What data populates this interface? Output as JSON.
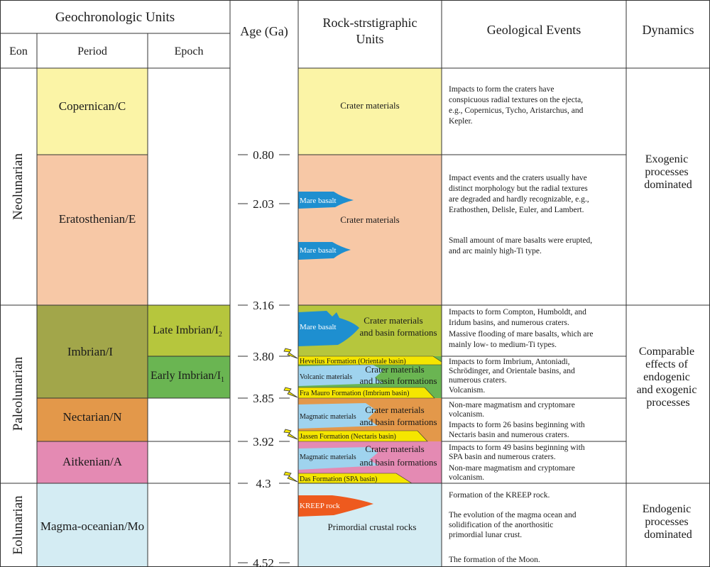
{
  "header": {
    "geochron": "Geochronologic Units",
    "eon": "Eon",
    "period": "Period",
    "epoch": "Epoch",
    "age": "Age (Ga)",
    "rock_line1": "Rock-strstigraphic",
    "rock_line2": "Units",
    "events": "Geological Events",
    "dynamics": "Dynamics"
  },
  "eons": [
    {
      "name": "Neolunarian"
    },
    {
      "name": "Paleolunarian"
    },
    {
      "name": "Eolunarian"
    }
  ],
  "periods": [
    {
      "name": "Copernican/C",
      "color": "#fbf4a6"
    },
    {
      "name": "Eratosthenian/E",
      "color": "#f7c8a6"
    },
    {
      "name": "Imbrian/I",
      "color": "#a2a64a"
    },
    {
      "name": "Nectarian/N",
      "color": "#e3984a"
    },
    {
      "name": "Aitkenian/A",
      "color": "#e48ab3"
    },
    {
      "name": "Magma-oceanian/Mo",
      "color": "#d4ecf3"
    }
  ],
  "epochs": [
    {
      "name": "Late Imbrian/I",
      "sub": "2",
      "color": "#b6c63d"
    },
    {
      "name": "Early Imbrian/I",
      "sub": "1",
      "color": "#6ab552"
    }
  ],
  "ages": [
    "0.80",
    "2.03",
    "3.16",
    "3.80",
    "3.85",
    "3.92",
    "4.3",
    "4.52"
  ],
  "rock_units": {
    "copernican": "Crater materials",
    "eratosthenian": "Crater materials",
    "mare1": "Mare basalt",
    "mare2": "Mare basalt",
    "mare3": "Mare basalt",
    "late_imbrian_l1": "Crater materials",
    "late_imbrian_l2": "and basin formations",
    "hevelius": "Hevelius Formation (Orientale basin)",
    "volcanic": "Volcanic materials",
    "early_imbrian_l1": "Crater materials",
    "early_imbrian_l2": "and basin formations",
    "fra_mauro": "Fra Mauro Formation (Imbrium basin)",
    "magmatic_n": "Magmatic materials",
    "nectarian_l1": "Crater materials",
    "nectarian_l2": "and basin formations",
    "jassen": "Jassen Formation (Nectaris basin)",
    "magmatic_a": "Magmatic materials",
    "aitkenian_l1": "Crater materials",
    "aitkenian_l2": "and basin formations",
    "das": "Das Formation (SPA basin)",
    "kreep": "KREEP rock",
    "primordial": "Primordial crustal rocks"
  },
  "events": {
    "copernican": [
      "Impacts to form the craters have",
      "conspicuous radial textures on the ejecta,",
      "e.g., Copernicus, Tycho, Aristarchus, and",
      " Kepler."
    ],
    "eratosthenian_a": [
      "Impact events and the craters usually have",
      "distinct morphology but the radial textures",
      "are degraded and hardly recognizable, e.g.,",
      "Erathosthen, Delisle, Euler, and Lambert."
    ],
    "eratosthenian_b": [
      "Small amount of mare basalts were erupted,",
      "and arc mainly high-Ti type."
    ],
    "late_imbrian": [
      "Impacts to form Compton, Humboldt, and",
      " Iridum basins, and numerous craters.",
      "Massive flooding of mare basalts, which are",
      " mainly low- to medium-Ti types."
    ],
    "early_imbrian": [
      "Impacts to form Imbrium, Antoniadi,",
      "Schrödinger, and Orientale basins, and",
      "numerous craters.",
      "Volcanism."
    ],
    "nectarian": [
      "Non-mare magmatism and cryptomare",
      "volcanism.",
      "Impacts to form 26 basins beginning with",
      "Nectaris basin and numerous craters."
    ],
    "aitkenian": [
      "Impacts to form 49 basins beginning with",
      "SPA basin and numerous craters.",
      "Non-mare magmatism and cryptomare",
      "volcanism."
    ],
    "magma_a": [
      "Formation of the KREEP rock."
    ],
    "magma_b": [
      "The evolution of the magma ocean and",
      "solidification of the anorthositic",
      "primordial lunar crust."
    ],
    "magma_c": [
      "The formation of the Moon."
    ]
  },
  "dynamics": {
    "exogenic": [
      "Exogenic",
      "processes",
      "dominated"
    ],
    "comparable": [
      "Comparable",
      "effects of",
      "endogenic",
      "and exogenic",
      "processes"
    ],
    "endogenic": [
      "Endogenic",
      "processes",
      "dominated"
    ]
  },
  "colors": {
    "line": "#333333",
    "mare": "#1e8fd0",
    "kreep": "#ee5a1e",
    "formation": "#f5e600",
    "blue_material": "#9fd3ee"
  }
}
